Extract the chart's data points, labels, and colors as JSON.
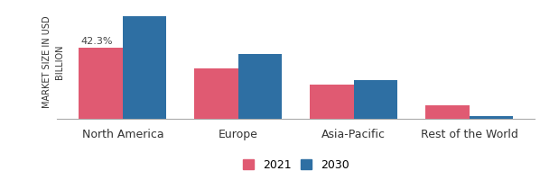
{
  "categories": [
    "North America",
    "Europe",
    "Asia-Pacific",
    "Rest of the World"
  ],
  "values_2021": [
    68,
    48,
    33,
    13
  ],
  "values_2030": [
    97,
    62,
    37,
    3
  ],
  "color_2021": "#e05a72",
  "color_2030": "#2e6fa3",
  "ylabel": "MARKET SIZE IN USD\nBILLION",
  "annotation": "42.3%",
  "legend_labels": [
    "2021",
    "2030"
  ],
  "bar_width": 0.38,
  "ylim": [
    0,
    108
  ],
  "background_color": "#ffffff",
  "annotation_fontsize": 8,
  "xlabel_fontsize": 9,
  "ylabel_fontsize": 7
}
